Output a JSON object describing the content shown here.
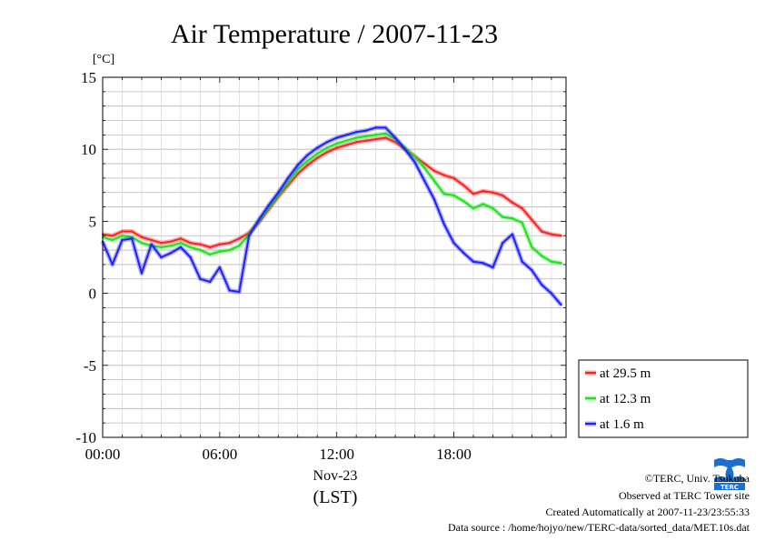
{
  "chart_data": {
    "type": "line",
    "title": "Air Temperature / 2007-11-23",
    "ylabel": "[°C]",
    "xlabel_lines": [
      "Nov-23",
      "(LST)"
    ],
    "ylim": [
      -10,
      15
    ],
    "xlim": [
      0,
      23.75
    ],
    "yticks": [
      "15",
      "10",
      "5",
      "0",
      "-5",
      "-10"
    ],
    "ytick_values": [
      15,
      10,
      5,
      0,
      -5,
      -10
    ],
    "xticks": [
      "00:00",
      "06:00",
      "12:00",
      "18:00"
    ],
    "xtick_values": [
      0,
      6,
      12,
      18
    ],
    "grid": true,
    "legend_position": "bottom-right outside",
    "x": [
      0,
      0.5,
      1,
      1.5,
      2,
      2.5,
      3,
      3.5,
      4,
      4.5,
      5,
      5.5,
      6,
      6.5,
      7,
      7.5,
      8,
      8.5,
      9,
      9.5,
      10,
      10.5,
      11,
      11.5,
      12,
      12.5,
      13,
      13.5,
      14,
      14.5,
      15,
      15.5,
      16,
      16.5,
      17,
      17.5,
      18,
      18.5,
      19,
      19.5,
      20,
      20.5,
      21,
      21.5,
      22,
      22.5,
      23,
      23.5
    ],
    "series": [
      {
        "name": "at 29.5 m",
        "color": "#ff2020",
        "values": [
          4.1,
          4.0,
          4.3,
          4.3,
          3.9,
          3.7,
          3.5,
          3.6,
          3.8,
          3.5,
          3.4,
          3.2,
          3.4,
          3.5,
          3.8,
          4.2,
          4.9,
          5.8,
          6.7,
          7.5,
          8.3,
          8.9,
          9.4,
          9.8,
          10.1,
          10.3,
          10.5,
          10.6,
          10.7,
          10.8,
          10.5,
          10.0,
          9.5,
          9.0,
          8.5,
          8.2,
          8.0,
          7.5,
          6.9,
          7.1,
          7.0,
          6.8,
          6.3,
          5.9,
          5.1,
          4.3,
          4.1,
          4.0
        ]
      },
      {
        "name": "at 12.3 m",
        "color": "#20e020",
        "values": [
          3.9,
          3.7,
          4.0,
          3.9,
          3.5,
          3.3,
          3.2,
          3.3,
          3.5,
          3.2,
          3.0,
          2.7,
          2.9,
          3.0,
          3.3,
          4.1,
          5.0,
          5.9,
          6.8,
          7.7,
          8.6,
          9.2,
          9.7,
          10.1,
          10.4,
          10.6,
          10.8,
          10.9,
          11.0,
          11.1,
          10.7,
          10.1,
          9.5,
          8.7,
          7.8,
          6.9,
          6.8,
          6.4,
          5.9,
          6.2,
          5.9,
          5.3,
          5.2,
          4.9,
          3.2,
          2.6,
          2.2,
          2.1
        ]
      },
      {
        "name": "at 1.6 m",
        "color": "#2020ff",
        "values": [
          3.6,
          2.0,
          3.7,
          3.8,
          1.4,
          3.4,
          2.5,
          2.8,
          3.2,
          2.5,
          1.0,
          0.8,
          1.8,
          0.2,
          0.1,
          4.0,
          5.1,
          6.1,
          7.0,
          8.0,
          8.9,
          9.6,
          10.1,
          10.5,
          10.8,
          11.0,
          11.2,
          11.3,
          11.5,
          11.5,
          10.8,
          10.0,
          9.1,
          7.8,
          6.5,
          4.8,
          3.5,
          2.8,
          2.2,
          2.1,
          1.8,
          3.5,
          4.1,
          2.2,
          1.6,
          0.6,
          0.0,
          -0.8
        ]
      }
    ]
  },
  "footer": {
    "copyright": "©TERC, Univ. Tsukuba",
    "observed": "Observed at TERC Tower site",
    "created": "Created Automatically at 2007-11-23/23:55:33",
    "source": "Data source : /home/hojyo/new/TERC-data/sorted_data/MET.10s.dat"
  },
  "logo": {
    "text": "TERC",
    "color": "#1a6fd0"
  }
}
